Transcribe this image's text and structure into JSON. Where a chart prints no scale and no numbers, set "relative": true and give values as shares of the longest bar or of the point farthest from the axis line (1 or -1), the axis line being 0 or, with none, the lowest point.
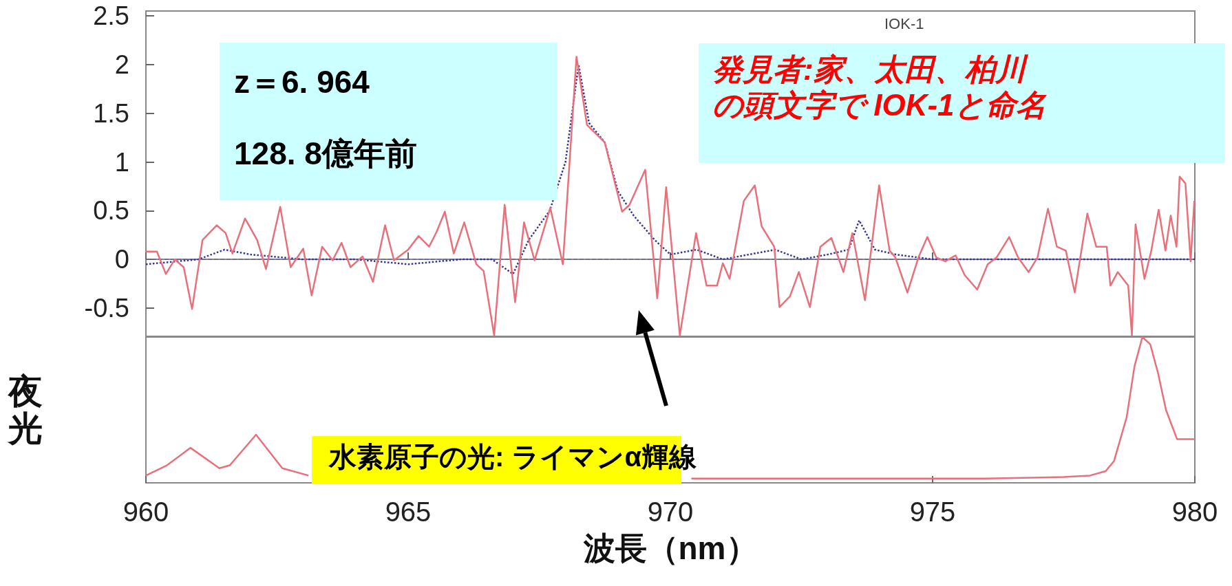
{
  "chart_data": [
    {
      "type": "line",
      "xlim": [
        960,
        980
      ],
      "xticks": [
        960,
        965,
        970,
        975,
        980
      ],
      "ylim": [
        -0.79,
        2.55
      ],
      "yticks": [
        -0.5,
        0.0,
        0.5,
        1.0,
        1.5,
        2.0,
        2.5
      ],
      "tick_labels": "y",
      "grid": false,
      "marker": "none",
      "series": [
        {
          "color": "#e8707a",
          "line_style": "solid",
          "x": [
            960.0,
            960.21,
            960.38,
            960.55,
            960.72,
            960.88,
            961.08,
            961.35,
            961.52,
            961.65,
            961.89,
            962.12,
            962.29,
            962.56,
            962.76,
            963.0,
            963.16,
            963.36,
            963.56,
            963.73,
            963.9,
            964.13,
            964.33,
            964.56,
            964.73,
            965.0,
            965.2,
            965.4,
            965.54,
            965.7,
            965.87,
            966.07,
            966.3,
            966.44,
            966.64,
            966.84,
            967.04,
            967.21,
            967.41,
            967.71,
            967.95,
            968.21,
            968.41,
            968.75,
            969.08,
            969.22,
            969.52,
            969.75,
            969.92,
            970.18,
            970.49,
            970.69,
            970.89,
            971.0,
            971.13,
            971.4,
            971.61,
            971.74,
            971.98,
            972.08,
            972.28,
            972.45,
            972.66,
            972.86,
            973.07,
            973.3,
            973.47,
            973.71,
            973.98,
            974.18,
            974.29,
            974.52,
            974.73,
            974.9,
            975.07,
            975.24,
            975.44,
            975.61,
            975.85,
            976.05,
            976.22,
            976.46,
            976.63,
            976.83,
            977.0,
            977.2,
            977.37,
            977.54,
            977.71,
            977.95,
            978.12,
            978.32,
            978.39,
            978.53,
            978.73,
            978.8,
            978.87,
            979.04,
            979.17,
            979.31,
            979.44,
            979.54,
            979.65,
            979.71,
            979.82,
            979.92,
            979.99
          ],
          "values": [
            0.08,
            0.08,
            -0.15,
            0.0,
            -0.08,
            -0.51,
            0.2,
            0.35,
            0.27,
            0.06,
            0.42,
            0.2,
            -0.1,
            0.54,
            -0.08,
            0.11,
            -0.37,
            0.13,
            -0.01,
            0.17,
            -0.08,
            0.03,
            -0.23,
            0.35,
            -0.01,
            0.1,
            0.24,
            0.13,
            0.28,
            0.49,
            0.06,
            0.38,
            -0.05,
            -0.12,
            -0.78,
            0.56,
            -0.44,
            0.38,
            -0.01,
            0.53,
            -0.05,
            2.08,
            1.38,
            1.2,
            0.49,
            0.56,
            0.92,
            -0.4,
            0.74,
            -0.78,
            0.27,
            -0.27,
            -0.27,
            -0.04,
            -0.2,
            0.6,
            0.76,
            0.34,
            0.13,
            -0.49,
            -0.38,
            -0.13,
            -0.49,
            0.13,
            0.22,
            -0.13,
            0.27,
            -0.42,
            0.76,
            0.09,
            0.02,
            -0.34,
            0.02,
            0.23,
            0.02,
            -0.02,
            0.04,
            -0.16,
            -0.31,
            -0.05,
            0.02,
            0.23,
            0.02,
            -0.13,
            0.02,
            0.52,
            0.13,
            0.09,
            -0.34,
            0.47,
            0.13,
            0.13,
            -0.27,
            -0.13,
            -0.27,
            -0.78,
            0.36,
            -0.2,
            0.09,
            0.51,
            0.09,
            0.45,
            0.13,
            0.85,
            0.78,
            -0.02,
            0.6
          ]
        },
        {
          "color": "#333399",
          "line_style": "dotted",
          "x": [
            960.0,
            961.0,
            961.5,
            962.0,
            963.0,
            964.0,
            965.0,
            966.0,
            966.6,
            967.0,
            967.3,
            967.7,
            968.0,
            968.25,
            968.45,
            968.75,
            969.0,
            969.3,
            969.7,
            970.0,
            970.5,
            971.0,
            971.5,
            972.0,
            972.5,
            973.0,
            973.4,
            973.6,
            973.9,
            974.3,
            975.0,
            976.0,
            977.0,
            978.0,
            979.0,
            980.0
          ],
          "values": [
            -0.05,
            0.0,
            0.1,
            0.05,
            0.0,
            0.0,
            -0.05,
            0.0,
            0.0,
            -0.15,
            0.2,
            0.5,
            1.0,
            2.0,
            1.4,
            1.2,
            0.7,
            0.45,
            0.2,
            0.05,
            0.1,
            0.0,
            0.05,
            0.1,
            0.0,
            0.05,
            0.1,
            0.4,
            0.1,
            0.05,
            0.0,
            0.0,
            0.0,
            0.0,
            0.0,
            0.0
          ]
        }
      ],
      "ref_lines": [
        {
          "axis": "y",
          "value": 0,
          "color": "#666699",
          "line_style": "dashed"
        }
      ],
      "annotations": [
        "z＝6. 964",
        "128. 8億年前",
        "発見者:家、太田、柏川",
        "の頭文字で IOK-1と命名",
        "IOK-1",
        "水素原子の光: ライマンα輝線"
      ]
    },
    {
      "type": "line",
      "relative": true,
      "xlim": [
        960,
        980
      ],
      "xticks": [
        960,
        965,
        970,
        975,
        980
      ],
      "tick_labels": "x",
      "grid": false,
      "marker": "none",
      "xlabel": "波長（nm）",
      "ylabel": "夜光",
      "series": [
        {
          "color": "#e8707a",
          "line_style": "solid",
          "x": [
            960.0,
            960.4,
            960.85,
            961.4,
            961.6,
            962.1,
            962.6,
            963.1,
            964.0,
            966.0,
            968.0,
            970.4,
            972.0,
            974.0,
            976.0,
            977.5,
            978.0,
            978.3,
            978.46,
            978.7,
            978.85,
            979.0,
            979.15,
            979.3,
            979.45,
            979.66,
            979.8,
            980.0
          ],
          "values": [
            0.05,
            0.12,
            0.24,
            0.1,
            0.12,
            0.33,
            0.1,
            0.05,
            null,
            null,
            null,
            0.03,
            0.03,
            0.03,
            0.03,
            0.04,
            0.05,
            0.08,
            0.15,
            0.45,
            0.8,
            1.0,
            0.95,
            0.75,
            0.5,
            0.3,
            0.3,
            0.3
          ]
        }
      ]
    }
  ]
}
